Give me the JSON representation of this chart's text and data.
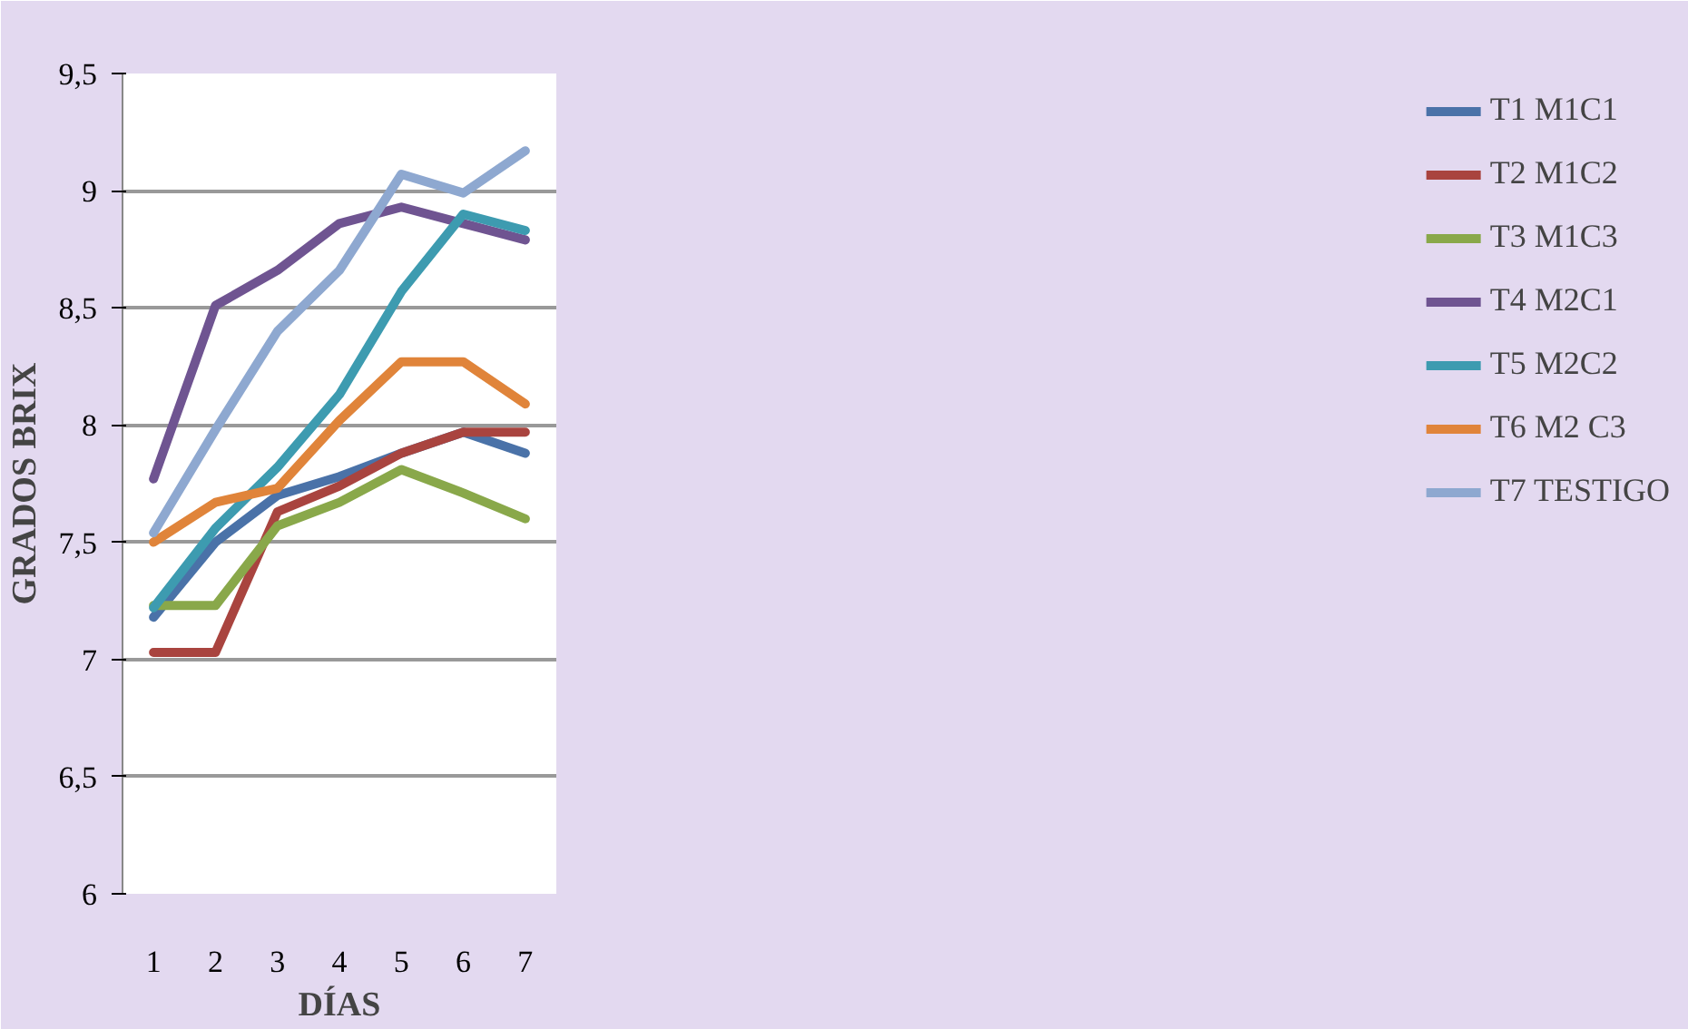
{
  "chart_data": {
    "type": "line",
    "xlabel": "DÍAS",
    "ylabel": "GRADOS BRIX",
    "categories": [
      "1",
      "2",
      "3",
      "4",
      "5",
      "6",
      "7"
    ],
    "ylim": [
      6,
      9.5
    ],
    "yticks": [
      6,
      {
        "value": 6.5,
        "label": "6,5"
      },
      7,
      {
        "value": 7.5,
        "label": "7,5"
      },
      8,
      {
        "value": 8.5,
        "label": "8,5"
      },
      9,
      {
        "value": 9.5,
        "label": "9,5"
      }
    ],
    "grid": "y",
    "legend": "right",
    "marker": "none",
    "line_style": "solid",
    "series": [
      {
        "name": "T1 M1C1",
        "color": "#4a72a8",
        "values": [
          7.18,
          7.5,
          7.7,
          7.78,
          7.88,
          7.97,
          7.88
        ]
      },
      {
        "name": "T2 M1C2",
        "color": "#a9443f",
        "values": [
          7.03,
          7.03,
          7.63,
          7.74,
          7.88,
          7.97,
          7.97
        ]
      },
      {
        "name": "T3 M1C3",
        "color": "#89a84a",
        "values": [
          7.23,
          7.23,
          7.57,
          7.67,
          7.81,
          7.71,
          7.6
        ]
      },
      {
        "name": "T4 M2C1",
        "color": "#6f5491",
        "values": [
          7.77,
          8.51,
          8.66,
          8.86,
          8.93,
          8.86,
          8.79
        ]
      },
      {
        "name": "T5 M2C2",
        "color": "#3d9bb0",
        "values": [
          7.22,
          7.56,
          7.82,
          8.13,
          8.57,
          8.9,
          8.83
        ]
      },
      {
        "name": "T6 M2 C3",
        "color": "#e0843a",
        "values": [
          7.5,
          7.67,
          7.73,
          8.02,
          8.27,
          8.27,
          8.09
        ]
      },
      {
        "name": "T7 TESTIGO",
        "color": "#8ea8d0",
        "values": [
          7.54,
          7.98,
          8.4,
          8.66,
          9.07,
          8.99,
          9.17
        ]
      }
    ]
  }
}
